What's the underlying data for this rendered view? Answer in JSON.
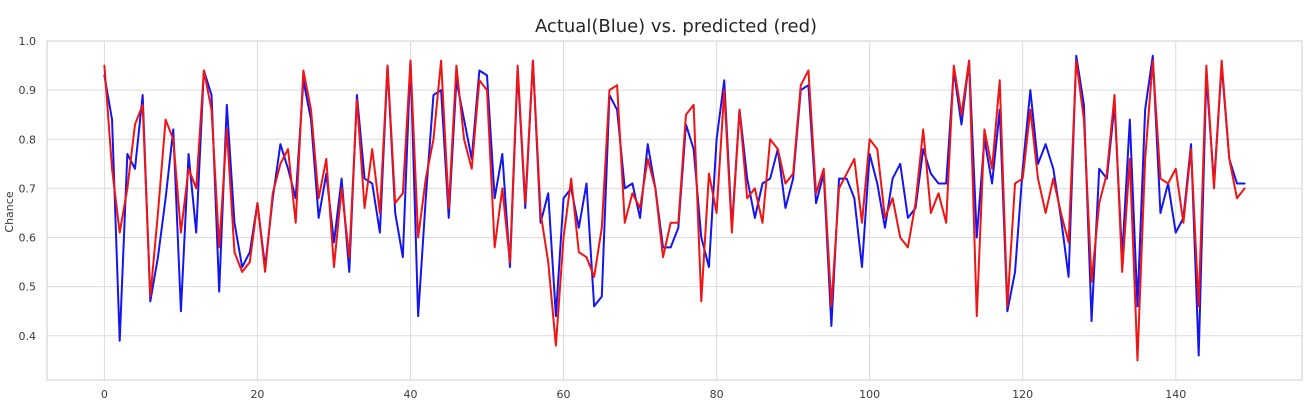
{
  "chart_data": {
    "type": "line",
    "title": "Actual(Blue) vs. predicted (red)",
    "xlabel": "",
    "ylabel": "Chance",
    "xlim": [
      -7.5,
      156.5
    ],
    "ylim": [
      0.31,
      1.0
    ],
    "xticks": [
      0,
      20,
      40,
      60,
      80,
      100,
      120,
      140
    ],
    "yticks": [
      0.4,
      0.5,
      0.6,
      0.7,
      0.8,
      0.9,
      1.0
    ],
    "ytick_labels": [
      "0.4",
      "0.5",
      "0.6",
      "0.7",
      "0.8",
      "0.9",
      "1.0"
    ],
    "grid": true,
    "series": [
      {
        "color": "#1515f0",
        "values": [
          0.93,
          0.84,
          0.39,
          0.77,
          0.74,
          0.89,
          0.47,
          0.56,
          0.68,
          0.82,
          0.45,
          0.77,
          0.61,
          0.94,
          0.89,
          0.49,
          0.87,
          0.63,
          0.54,
          0.57,
          0.67,
          0.54,
          0.68,
          0.79,
          0.74,
          0.68,
          0.92,
          0.84,
          0.64,
          0.73,
          0.59,
          0.72,
          0.53,
          0.89,
          0.72,
          0.71,
          0.61,
          0.95,
          0.65,
          0.56,
          0.96,
          0.44,
          0.68,
          0.89,
          0.9,
          0.64,
          0.92,
          0.84,
          0.76,
          0.94,
          0.93,
          0.68,
          0.77,
          0.54,
          0.94,
          0.66,
          0.96,
          0.63,
          0.69,
          0.44,
          0.68,
          0.7,
          0.62,
          0.71,
          0.46,
          0.48,
          0.89,
          0.86,
          0.7,
          0.71,
          0.64,
          0.79,
          0.7,
          0.58,
          0.58,
          0.62,
          0.83,
          0.78,
          0.6,
          0.54,
          0.8,
          0.92,
          0.62,
          0.86,
          0.72,
          0.64,
          0.71,
          0.72,
          0.78,
          0.66,
          0.72,
          0.9,
          0.91,
          0.67,
          0.73,
          0.42,
          0.72,
          0.72,
          0.68,
          0.54,
          0.77,
          0.71,
          0.62,
          0.72,
          0.75,
          0.64,
          0.66,
          0.78,
          0.73,
          0.71,
          0.71,
          0.94,
          0.83,
          0.96,
          0.6,
          0.8,
          0.71,
          0.86,
          0.45,
          0.53,
          0.74,
          0.9,
          0.75,
          0.79,
          0.74,
          0.64,
          0.52,
          0.97,
          0.87,
          0.43,
          0.74,
          0.72,
          0.87,
          0.56,
          0.84,
          0.46,
          0.86,
          0.97,
          0.65,
          0.71,
          0.61,
          0.64,
          0.79,
          0.36,
          0.93,
          0.71,
          0.95,
          0.76,
          0.71,
          0.71
        ]
      },
      {
        "color": "#f01515",
        "values": [
          0.95,
          0.74,
          0.61,
          0.7,
          0.83,
          0.87,
          0.48,
          0.65,
          0.84,
          0.8,
          0.61,
          0.74,
          0.7,
          0.94,
          0.86,
          0.58,
          0.82,
          0.57,
          0.53,
          0.55,
          0.67,
          0.53,
          0.69,
          0.75,
          0.78,
          0.63,
          0.94,
          0.86,
          0.68,
          0.76,
          0.54,
          0.7,
          0.56,
          0.88,
          0.66,
          0.78,
          0.65,
          0.95,
          0.67,
          0.69,
          0.96,
          0.6,
          0.72,
          0.8,
          0.96,
          0.66,
          0.95,
          0.8,
          0.74,
          0.92,
          0.9,
          0.58,
          0.7,
          0.55,
          0.95,
          0.67,
          0.96,
          0.65,
          0.55,
          0.38,
          0.6,
          0.72,
          0.57,
          0.56,
          0.52,
          0.62,
          0.9,
          0.91,
          0.63,
          0.69,
          0.66,
          0.76,
          0.7,
          0.56,
          0.63,
          0.63,
          0.85,
          0.87,
          0.47,
          0.73,
          0.65,
          0.9,
          0.61,
          0.86,
          0.68,
          0.7,
          0.63,
          0.8,
          0.78,
          0.71,
          0.73,
          0.91,
          0.94,
          0.69,
          0.74,
          0.46,
          0.7,
          0.73,
          0.76,
          0.63,
          0.8,
          0.78,
          0.64,
          0.68,
          0.6,
          0.58,
          0.67,
          0.82,
          0.65,
          0.69,
          0.63,
          0.95,
          0.85,
          0.96,
          0.44,
          0.82,
          0.74,
          0.92,
          0.46,
          0.71,
          0.72,
          0.86,
          0.72,
          0.65,
          0.72,
          0.65,
          0.59,
          0.96,
          0.84,
          0.51,
          0.67,
          0.73,
          0.89,
          0.53,
          0.76,
          0.35,
          0.76,
          0.96,
          0.72,
          0.71,
          0.74,
          0.63,
          0.78,
          0.46,
          0.95,
          0.7,
          0.96,
          0.76,
          0.68,
          0.7
        ]
      }
    ]
  }
}
